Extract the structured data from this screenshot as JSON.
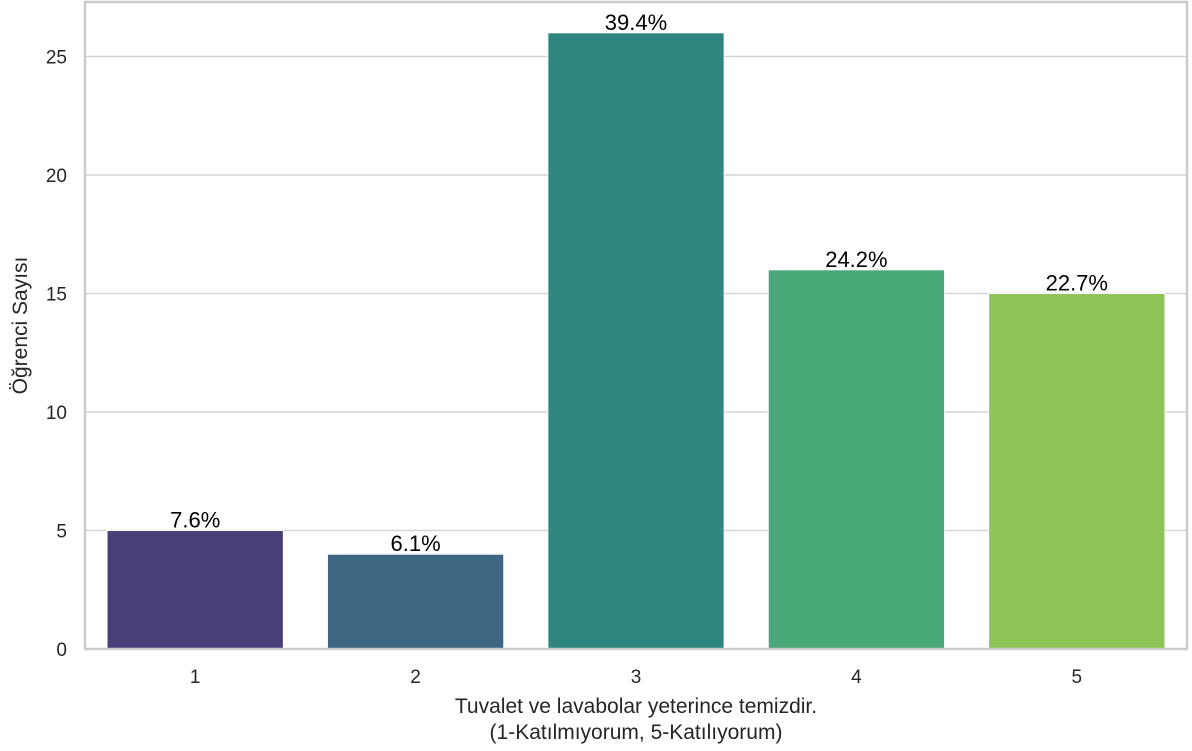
{
  "chart_data": {
    "type": "bar",
    "categories": [
      "1",
      "2",
      "3",
      "4",
      "5"
    ],
    "values": [
      5,
      4,
      26,
      16,
      15
    ],
    "bar_labels": [
      "7.6%",
      "6.1%",
      "39.4%",
      "24.2%",
      "22.7%"
    ],
    "colors": [
      "#4a3e78",
      "#3e6682",
      "#2f857f",
      "#48a878",
      "#8ec556"
    ],
    "title": "",
    "xlabel_line1": "Tuvalet ve lavabolar yeterince temizdir.",
    "xlabel_line2": "(1-Katılmıyorum, 5-Katılıyorum)",
    "ylabel": "Öğrenci Sayısı",
    "yticks": [
      0,
      5,
      10,
      15,
      20,
      25
    ],
    "ylim": [
      0,
      27.3
    ],
    "grid": "horizontal",
    "legend": "none"
  }
}
